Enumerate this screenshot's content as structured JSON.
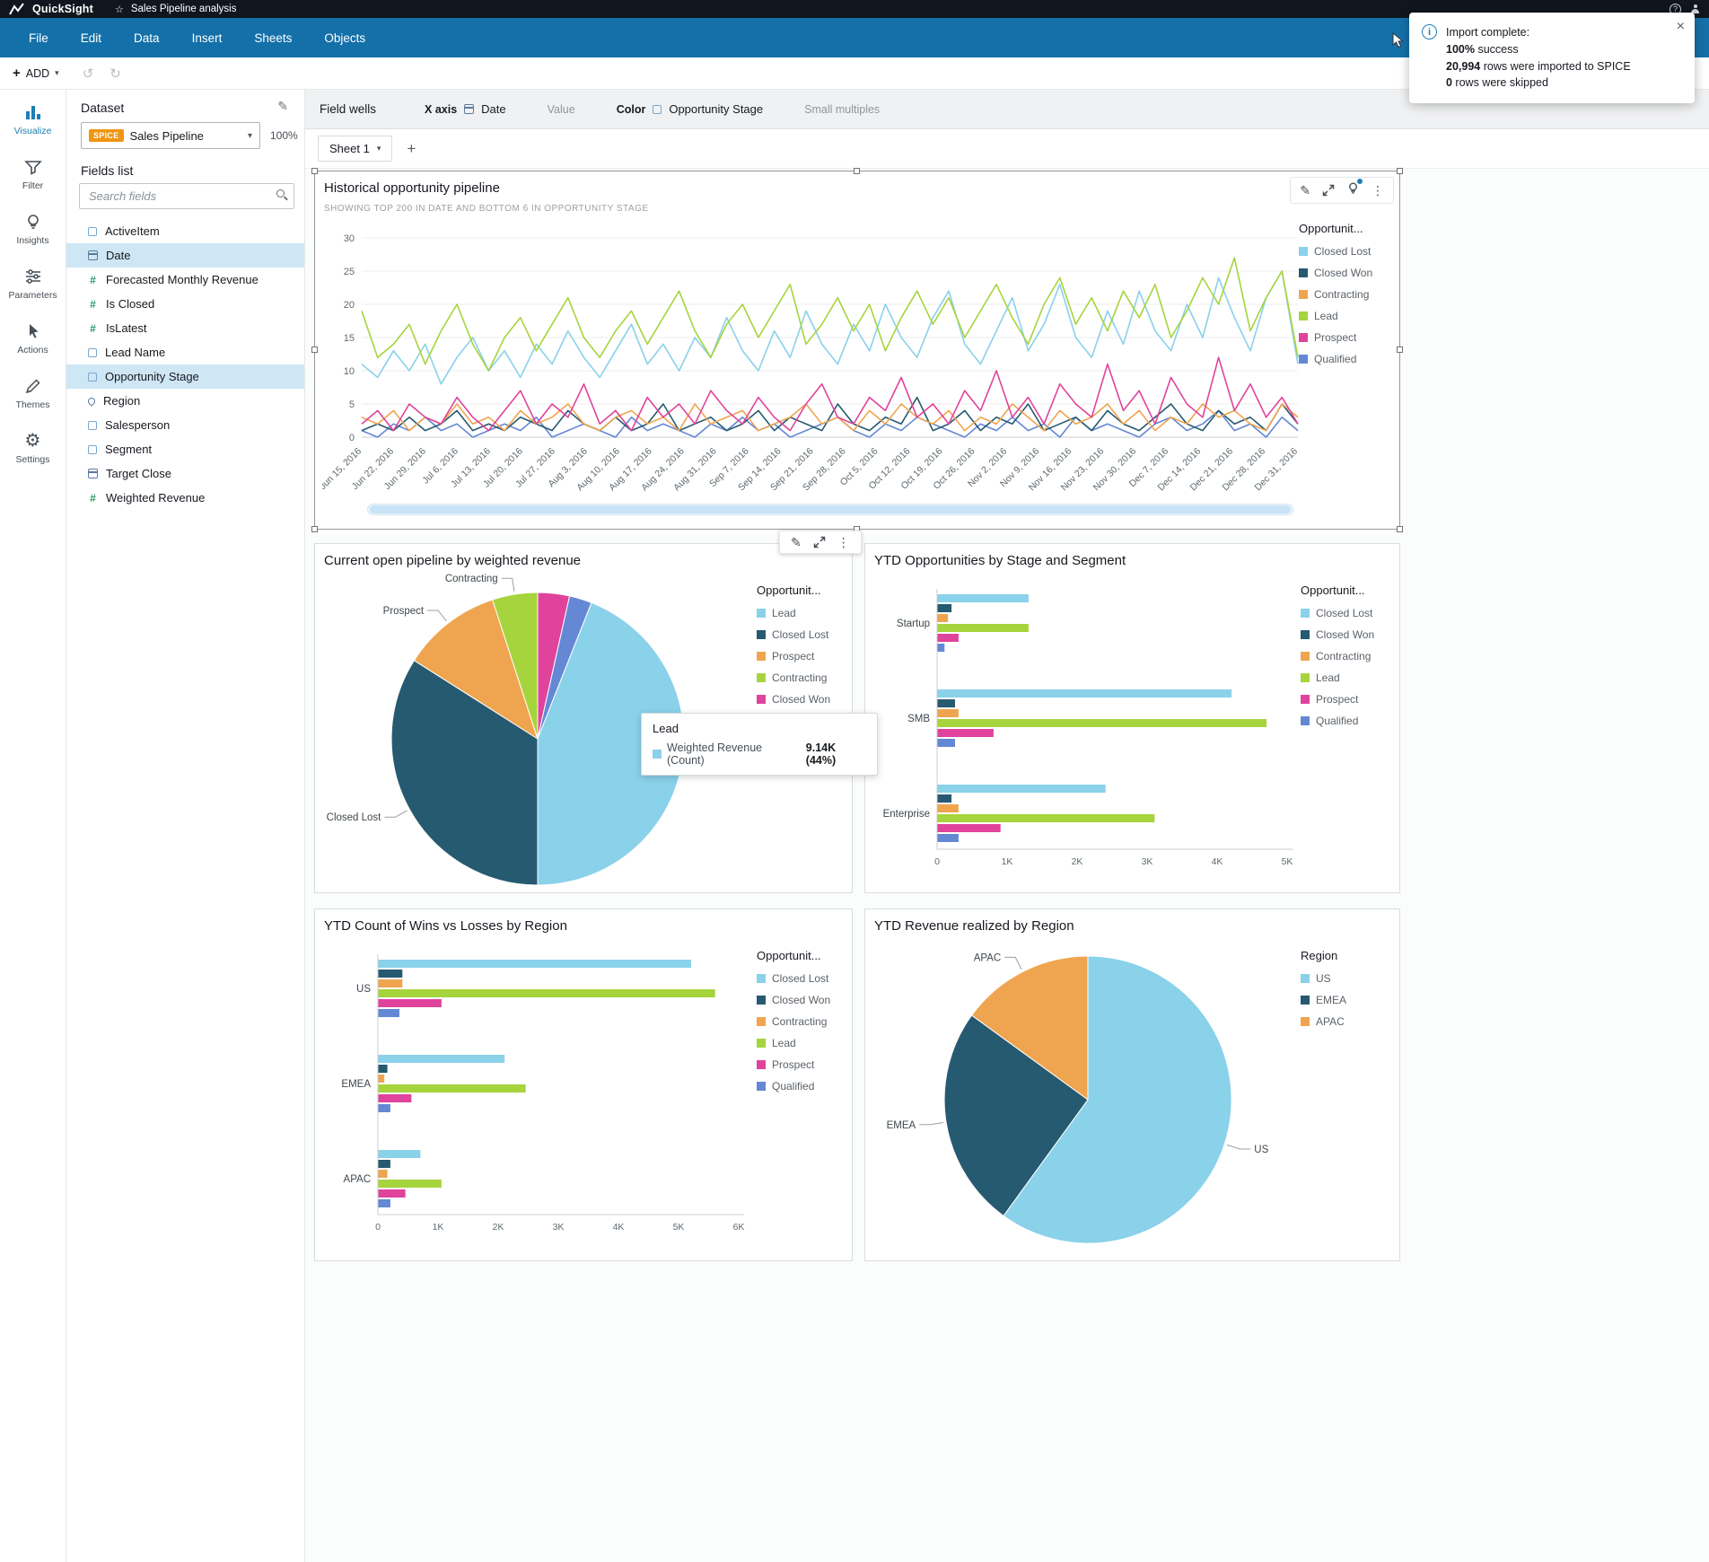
{
  "topbar": {
    "app": "QuickSight",
    "star": "☆",
    "title": "Sales Pipeline analysis",
    "help": "?"
  },
  "menu": {
    "items": [
      "File",
      "Edit",
      "Data",
      "Insert",
      "Sheets",
      "Objects"
    ]
  },
  "toolbar": {
    "add": "ADD"
  },
  "toast": {
    "title": "Import complete:",
    "success_bold": "100%",
    "success_rest": " success",
    "rows_bold": "20,994",
    "rows_rest": " rows were imported to SPICE",
    "skipped_bold": "0",
    "skipped_rest": " rows were skipped",
    "close": "×"
  },
  "rail": {
    "items": [
      {
        "label": "Visualize"
      },
      {
        "label": "Filter"
      },
      {
        "label": "Insights"
      },
      {
        "label": "Parameters"
      },
      {
        "label": "Actions"
      },
      {
        "label": "Themes"
      },
      {
        "label": "Settings"
      }
    ]
  },
  "panel": {
    "title": "Dataset",
    "spice": "SPICE",
    "dataset": "Sales Pipeline",
    "pct": "100%",
    "fields_title": "Fields list",
    "search_placeholder": "Search fields",
    "fields": [
      {
        "label": "ActiveItem",
        "type": "dim"
      },
      {
        "label": "Date",
        "type": "date",
        "selected": true
      },
      {
        "label": "Forecasted Monthly Revenue",
        "type": "num"
      },
      {
        "label": "Is Closed",
        "type": "num"
      },
      {
        "label": "IsLatest",
        "type": "num"
      },
      {
        "label": "Lead Name",
        "type": "dim"
      },
      {
        "label": "Opportunity Stage",
        "type": "dim",
        "selected": true
      },
      {
        "label": "Region",
        "type": "geo"
      },
      {
        "label": "Salesperson",
        "type": "dim"
      },
      {
        "label": "Segment",
        "type": "dim"
      },
      {
        "label": "Target Close",
        "type": "date"
      },
      {
        "label": "Weighted Revenue",
        "type": "num"
      }
    ]
  },
  "field_wells": {
    "label": "Field wells",
    "x_axis": "X axis",
    "x_value": "Date",
    "value": "Value",
    "color": "Color",
    "color_value": "Opportunity Stage",
    "small_multiples": "Small multiples"
  },
  "sheet": {
    "tab": "Sheet 1"
  },
  "palette": {
    "closed_lost": "#8ad1ea",
    "closed_won": "#265a70",
    "contracting": "#efa54f",
    "lead": "#a6d43c",
    "prospect": "#e0439c",
    "qualified": "#6488d4",
    "accent": "#1d7fb5"
  },
  "tooltip": {
    "title": "Lead",
    "metric": "Weighted Revenue (Count)",
    "value": "9.14K (44%)",
    "color": "#8ad1ea"
  },
  "chart_data": [
    {
      "type": "line",
      "title": "Historical opportunity pipeline",
      "subtitle": "SHOWING TOP 200 IN DATE AND BOTTOM 6 IN OPPORTUNITY STAGE",
      "legend_title": "Opportunit...",
      "legend": [
        {
          "label": "Closed Lost",
          "color": "#8ad1ea"
        },
        {
          "label": "Closed Won",
          "color": "#265a70"
        },
        {
          "label": "Contracting",
          "color": "#efa54f"
        },
        {
          "label": "Lead",
          "color": "#a6d43c"
        },
        {
          "label": "Prospect",
          "color": "#e0439c"
        },
        {
          "label": "Qualified",
          "color": "#6488d4"
        }
      ],
      "ylim": [
        0,
        30
      ],
      "y_ticks": [
        0,
        5,
        10,
        15,
        20,
        25,
        30
      ],
      "x_ticks": [
        "Jun 15, 2016",
        "Jun 22, 2016",
        "Jun 29, 2016",
        "Jul 6, 2016",
        "Jul 13, 2016",
        "Jul 20, 2016",
        "Jul 27, 2016",
        "Aug 3, 2016",
        "Aug 10, 2016",
        "Aug 17, 2016",
        "Aug 24, 2016",
        "Aug 31, 2016",
        "Sep 7, 2016",
        "Sep 14, 2016",
        "Sep 21, 2016",
        "Sep 28, 2016",
        "Oct 5, 2016",
        "Oct 12, 2016",
        "Oct 19, 2016",
        "Oct 26, 2016",
        "Nov 2, 2016",
        "Nov 9, 2016",
        "Nov 16, 2016",
        "Nov 23, 2016",
        "Nov 30, 2016",
        "Dec 7, 2016",
        "Dec 14, 2016",
        "Dec 21, 2016",
        "Dec 28, 2016",
        "Dec 31, 2016"
      ],
      "series": [
        {
          "name": "Closed Lost",
          "color": "#8ad1ea",
          "values": [
            11,
            9,
            13,
            10,
            14,
            8,
            12,
            15,
            10,
            13,
            9,
            14,
            11,
            16,
            12,
            9,
            13,
            17,
            11,
            14,
            10,
            15,
            12,
            18,
            13,
            10,
            16,
            12,
            19,
            14,
            11,
            17,
            13,
            20,
            15,
            12,
            18,
            22,
            14,
            11,
            16,
            21,
            13,
            17,
            23,
            15,
            12,
            19,
            14,
            22,
            16,
            13,
            20,
            15,
            24,
            18,
            13,
            21,
            25,
            11
          ]
        },
        {
          "name": "Closed Won",
          "color": "#265a70",
          "values": [
            1,
            2,
            1,
            3,
            1,
            2,
            4,
            1,
            2,
            1,
            3,
            2,
            1,
            4,
            2,
            1,
            3,
            1,
            2,
            5,
            1,
            2,
            3,
            1,
            2,
            4,
            1,
            3,
            2,
            1,
            5,
            2,
            1,
            3,
            2,
            6,
            1,
            2,
            4,
            1,
            3,
            2,
            5,
            1,
            2,
            3,
            1,
            4,
            2,
            1,
            3,
            5,
            2,
            1,
            4,
            2,
            3,
            1,
            5,
            2
          ]
        },
        {
          "name": "Contracting",
          "color": "#efa54f",
          "values": [
            3,
            2,
            4,
            1,
            3,
            2,
            5,
            2,
            3,
            1,
            4,
            2,
            3,
            5,
            2,
            1,
            3,
            4,
            2,
            3,
            1,
            5,
            2,
            3,
            4,
            1,
            2,
            3,
            5,
            2,
            3,
            1,
            4,
            2,
            5,
            3,
            2,
            4,
            1,
            3,
            2,
            5,
            3,
            1,
            4,
            2,
            3,
            5,
            2,
            4,
            1,
            3,
            2,
            5,
            3,
            4,
            2,
            1,
            5,
            3
          ]
        },
        {
          "name": "Lead",
          "color": "#a6d43c",
          "values": [
            19,
            12,
            14,
            17,
            11,
            16,
            20,
            14,
            10,
            15,
            18,
            13,
            17,
            21,
            15,
            12,
            16,
            19,
            14,
            18,
            22,
            16,
            12,
            17,
            20,
            15,
            19,
            23,
            14,
            17,
            21,
            16,
            20,
            13,
            18,
            22,
            17,
            21,
            15,
            19,
            23,
            18,
            14,
            20,
            24,
            17,
            21,
            16,
            22,
            18,
            23,
            15,
            19,
            24,
            20,
            27,
            16,
            21,
            25,
            12
          ]
        },
        {
          "name": "Prospect",
          "color": "#e0439c",
          "values": [
            2,
            4,
            1,
            5,
            3,
            2,
            6,
            3,
            1,
            4,
            7,
            2,
            5,
            3,
            8,
            2,
            4,
            1,
            6,
            3,
            5,
            2,
            7,
            4,
            2,
            6,
            3,
            1,
            5,
            8,
            3,
            2,
            6,
            4,
            9,
            3,
            5,
            2,
            7,
            4,
            10,
            3,
            6,
            2,
            8,
            5,
            3,
            11,
            4,
            7,
            2,
            9,
            5,
            3,
            12,
            4,
            8,
            3,
            6,
            2
          ]
        },
        {
          "name": "Qualified",
          "color": "#6488d4",
          "values": [
            1,
            0,
            2,
            1,
            3,
            1,
            2,
            0,
            1,
            2,
            1,
            3,
            0,
            1,
            2,
            1,
            0,
            3,
            1,
            2,
            1,
            0,
            2,
            1,
            3,
            1,
            2,
            0,
            1,
            2,
            3,
            1,
            0,
            2,
            1,
            3,
            2,
            1,
            0,
            2,
            1,
            3,
            1,
            2,
            0,
            3,
            1,
            2,
            1,
            0,
            2,
            3,
            1,
            2,
            4,
            1,
            2,
            0,
            3,
            1
          ]
        }
      ]
    },
    {
      "type": "pie",
      "title": "Current open pipeline by weighted revenue",
      "legend_title": "Opportunit...",
      "legend": [
        {
          "label": "Lead",
          "color": "#8ad1ea"
        },
        {
          "label": "Closed Lost",
          "color": "#265a70"
        },
        {
          "label": "Prospect",
          "color": "#efa54f"
        },
        {
          "label": "Contracting",
          "color": "#a6d43c"
        },
        {
          "label": "Closed Won",
          "color": "#e0439c"
        },
        {
          "label": "Qualified",
          "color": "#6488d4"
        }
      ],
      "slices": [
        {
          "label": "Closed Won",
          "pct": 3.5,
          "color": "#e0439c"
        },
        {
          "label": "Qualified",
          "pct": 2.5,
          "color": "#6488d4"
        },
        {
          "label": "Lead",
          "pct": 44,
          "color": "#8ad1ea"
        },
        {
          "label": "Closed Lost",
          "pct": 34,
          "color": "#265a70"
        },
        {
          "label": "Prospect",
          "pct": 11,
          "color": "#efa54f"
        },
        {
          "label": "Contracting",
          "pct": 5,
          "color": "#a6d43c"
        }
      ],
      "callouts": [
        "Lead",
        "Closed Lost",
        "Prospect",
        "Contracting"
      ]
    },
    {
      "type": "bar",
      "title": "YTD Opportunities by Stage and Segment",
      "legend_title": "Opportunit...",
      "legend": [
        {
          "label": "Closed Lost",
          "color": "#8ad1ea"
        },
        {
          "label": "Closed Won",
          "color": "#265a70"
        },
        {
          "label": "Contracting",
          "color": "#efa54f"
        },
        {
          "label": "Lead",
          "color": "#a6d43c"
        },
        {
          "label": "Prospect",
          "color": "#e0439c"
        },
        {
          "label": "Qualified",
          "color": "#6488d4"
        }
      ],
      "categories": [
        "Startup",
        "SMB",
        "Enterprise"
      ],
      "max": 5000,
      "x_ticks": [
        "0",
        "1K",
        "2K",
        "3K",
        "4K",
        "5K"
      ],
      "series": [
        {
          "name": "Closed Lost",
          "color": "#8ad1ea",
          "values": [
            1300,
            4200,
            2400
          ]
        },
        {
          "name": "Closed Won",
          "color": "#265a70",
          "values": [
            200,
            250,
            200
          ]
        },
        {
          "name": "Contracting",
          "color": "#efa54f",
          "values": [
            150,
            300,
            300
          ]
        },
        {
          "name": "Lead",
          "color": "#a6d43c",
          "values": [
            1300,
            4700,
            3100
          ]
        },
        {
          "name": "Prospect",
          "color": "#e0439c",
          "values": [
            300,
            800,
            900
          ]
        },
        {
          "name": "Qualified",
          "color": "#6488d4",
          "values": [
            100,
            250,
            300
          ]
        }
      ]
    },
    {
      "type": "bar",
      "title": "YTD Count of Wins vs Losses by Region",
      "legend_title": "Opportunit...",
      "legend": [
        {
          "label": "Closed Lost",
          "color": "#8ad1ea"
        },
        {
          "label": "Closed Won",
          "color": "#265a70"
        },
        {
          "label": "Contracting",
          "color": "#efa54f"
        },
        {
          "label": "Lead",
          "color": "#a6d43c"
        },
        {
          "label": "Prospect",
          "color": "#e0439c"
        },
        {
          "label": "Qualified",
          "color": "#6488d4"
        }
      ],
      "categories": [
        "US",
        "EMEA",
        "APAC"
      ],
      "max": 6000,
      "x_ticks": [
        "0",
        "1K",
        "2K",
        "3K",
        "4K",
        "5K",
        "6K"
      ],
      "series": [
        {
          "name": "Closed Lost",
          "color": "#8ad1ea",
          "values": [
            5200,
            2100,
            700
          ]
        },
        {
          "name": "Closed Won",
          "color": "#265a70",
          "values": [
            400,
            150,
            200
          ]
        },
        {
          "name": "Contracting",
          "color": "#efa54f",
          "values": [
            400,
            100,
            150
          ]
        },
        {
          "name": "Lead",
          "color": "#a6d43c",
          "values": [
            5600,
            2450,
            1050
          ]
        },
        {
          "name": "Prospect",
          "color": "#e0439c",
          "values": [
            1050,
            550,
            450
          ]
        },
        {
          "name": "Qualified",
          "color": "#6488d4",
          "values": [
            350,
            200,
            200
          ]
        }
      ]
    },
    {
      "type": "pie",
      "title": "YTD Revenue realized by Region",
      "legend_title": "Region",
      "legend": [
        {
          "label": "US",
          "color": "#8ad1ea"
        },
        {
          "label": "EMEA",
          "color": "#265a70"
        },
        {
          "label": "APAC",
          "color": "#efa54f"
        }
      ],
      "slices": [
        {
          "label": "US",
          "pct": 60,
          "color": "#8ad1ea"
        },
        {
          "label": "EMEA",
          "pct": 25,
          "color": "#265a70"
        },
        {
          "label": "APAC",
          "pct": 15,
          "color": "#efa54f"
        }
      ],
      "callouts": [
        "US",
        "EMEA",
        "APAC"
      ]
    }
  ]
}
